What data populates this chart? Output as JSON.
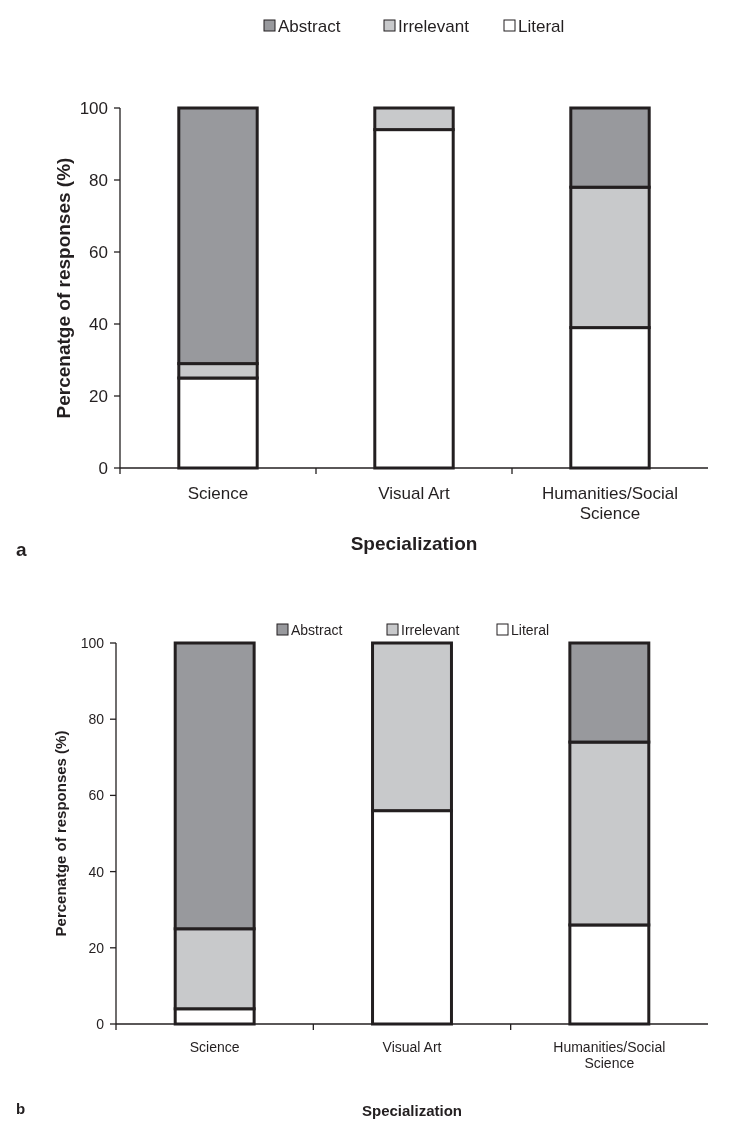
{
  "chart_data": [
    {
      "type": "bar",
      "stacked": true,
      "categories": [
        "Science",
        "Visual Art",
        "Humanities/Social Science"
      ],
      "xlabel": "Specialization",
      "ylabel": "Percenatge of responses (%)",
      "ylim": [
        0,
        100
      ],
      "yticks": [
        0,
        20,
        40,
        60,
        80,
        100
      ],
      "legend": "top",
      "annotations": [
        "a"
      ],
      "series": [
        {
          "name": "Literal",
          "color": "#ffffff",
          "values": [
            25,
            94,
            39
          ]
        },
        {
          "name": "Irrelevant",
          "color": "#c8c9cb",
          "values": [
            4,
            6,
            39
          ]
        },
        {
          "name": "Abstract",
          "color": "#98999d",
          "values": [
            71,
            0,
            22
          ]
        }
      ]
    },
    {
      "type": "bar",
      "stacked": true,
      "categories": [
        "Science",
        "Visual Art",
        "Humanities/Social Science"
      ],
      "xlabel": "Specialization",
      "ylabel": "Percenatge of responses (%)",
      "ylim": [
        0,
        100
      ],
      "yticks": [
        0,
        20,
        40,
        60,
        80,
        100
      ],
      "legend": "top",
      "annotations": [
        "b"
      ],
      "series": [
        {
          "name": "Literal",
          "color": "#ffffff",
          "values": [
            4,
            56,
            26
          ]
        },
        {
          "name": "Irrelevant",
          "color": "#c8c9cb",
          "values": [
            21,
            44,
            48
          ]
        },
        {
          "name": "Abstract",
          "color": "#98999d",
          "values": [
            75,
            0,
            26
          ]
        }
      ]
    }
  ]
}
